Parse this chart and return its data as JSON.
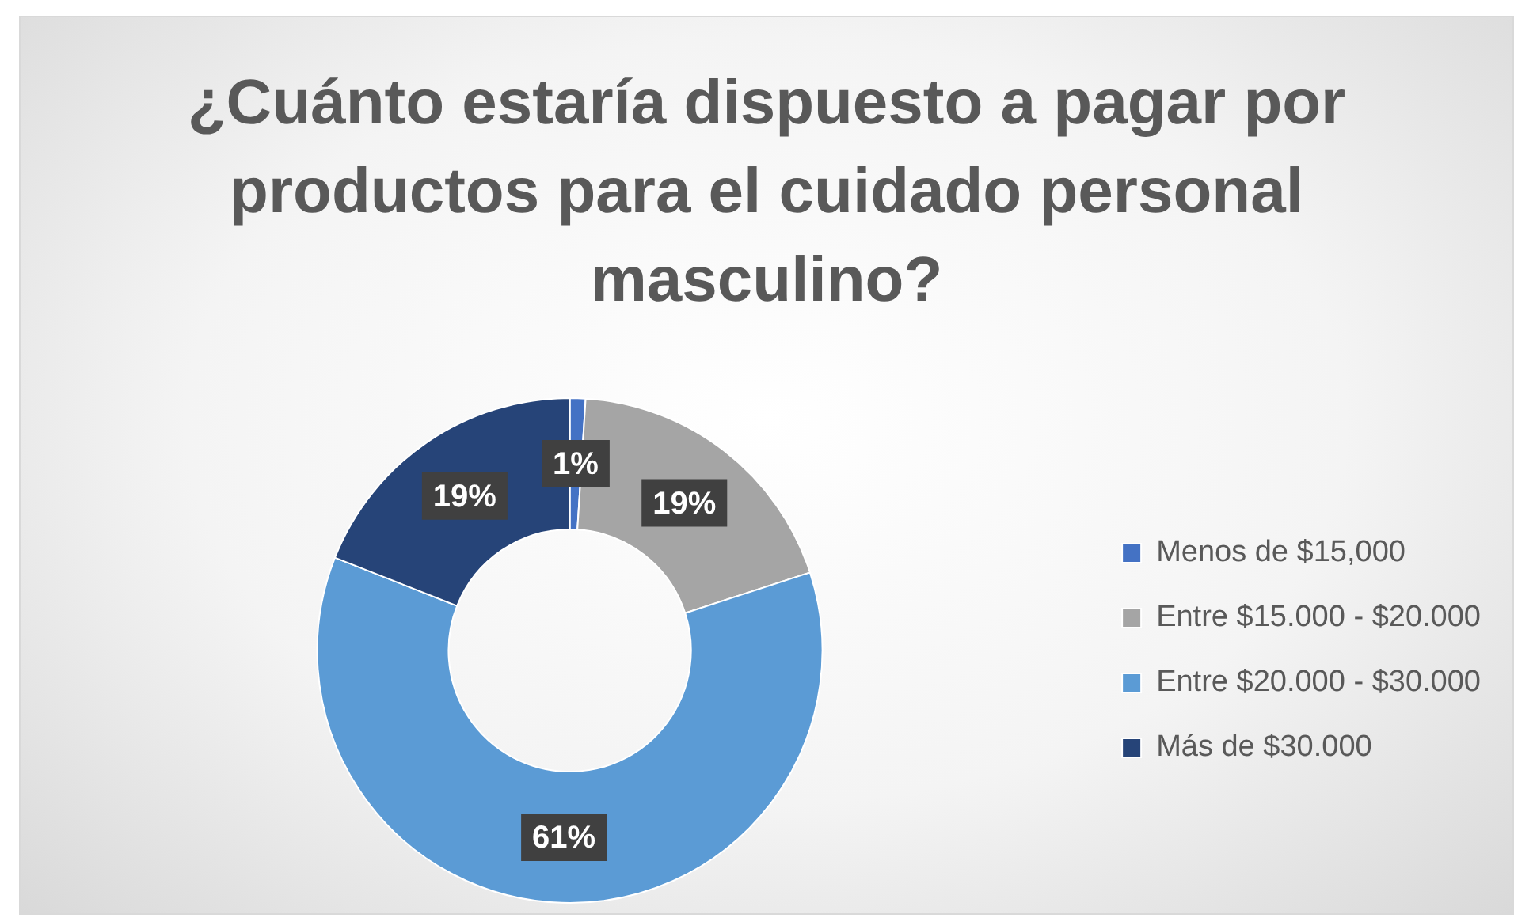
{
  "chart_data": {
    "type": "donut",
    "title": "¿Cuánto estaría dispuesto a pagar por productos para el cuidado personal masculino?",
    "categories": [
      "Menos de $15,000",
      "Entre $15.000 - $20.000",
      "Entre $20.000 - $30.000",
      "Más de $30.000"
    ],
    "values": [
      1,
      19,
      61,
      19
    ],
    "colors": [
      "#4472c4",
      "#a5a5a5",
      "#5b9bd5",
      "#264478"
    ],
    "value_labels": [
      "1%",
      "19%",
      "61%",
      "19%"
    ],
    "legend": "right"
  }
}
